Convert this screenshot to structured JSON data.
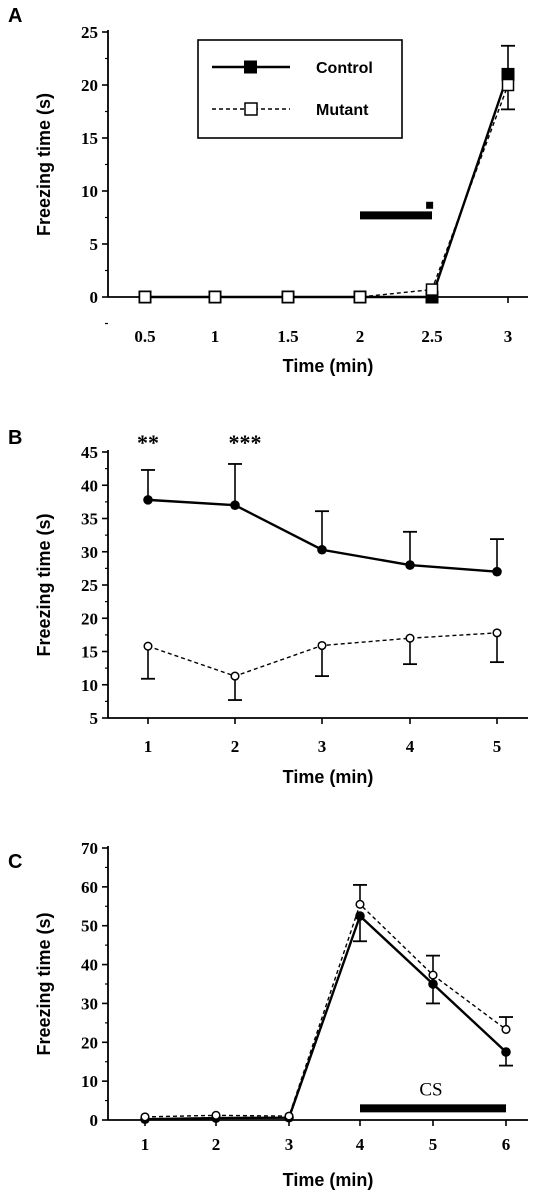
{
  "chart_data": [
    {
      "panel": "A",
      "type": "line",
      "x": [
        0.5,
        1,
        1.5,
        2,
        2.5,
        3
      ],
      "xticks": [
        "0.5",
        "1",
        "1.5",
        "2",
        "2.5",
        "3"
      ],
      "xlabel": "Time (min)",
      "ylabel": "Freezing  time  (s)",
      "ylim": [
        0,
        25
      ],
      "yticks": [
        0,
        5,
        10,
        15,
        20,
        25
      ],
      "legend": "top-center, boxed",
      "series": [
        {
          "name": "Control",
          "style": "solid",
          "marker": "filled-square",
          "values": [
            0,
            0,
            0,
            0,
            0,
            21
          ],
          "err_up": [
            0,
            0,
            0,
            0,
            0,
            2.7
          ],
          "err_down": [
            0,
            0,
            0,
            0,
            0,
            0
          ]
        },
        {
          "name": "Mutant",
          "style": "dashed",
          "marker": "open-square",
          "values": [
            0,
            0,
            0,
            0,
            0.7,
            20
          ],
          "err_up": [
            0,
            0,
            0,
            0,
            0,
            0
          ],
          "err_down": [
            0,
            0,
            0,
            0,
            0,
            2.3
          ]
        }
      ],
      "annotations": [
        {
          "kind": "bar",
          "x_from": 2,
          "x_to": 2.5,
          "y": 7.7
        },
        {
          "kind": "small-square",
          "x": 2.48,
          "y": 8.7
        }
      ]
    },
    {
      "panel": "B",
      "type": "line",
      "x": [
        1,
        2,
        3,
        4,
        5
      ],
      "xticks": [
        "1",
        "2",
        "3",
        "4",
        "5"
      ],
      "xlabel": "Time (min)",
      "ylabel": "Freezing  time  (s)",
      "ylim": [
        5,
        45
      ],
      "yticks": [
        5,
        10,
        15,
        20,
        25,
        30,
        35,
        40,
        45
      ],
      "series": [
        {
          "style": "solid",
          "marker": "filled-circle",
          "values": [
            37.8,
            37,
            30.3,
            28,
            27
          ],
          "err_up": [
            4.5,
            6.2,
            5.8,
            5,
            4.9
          ],
          "err_down": [
            0,
            0,
            0,
            0,
            0
          ]
        },
        {
          "style": "dashed",
          "marker": "open-circle",
          "values": [
            15.8,
            11.3,
            15.9,
            17,
            17.8
          ],
          "err_up": [
            0,
            0,
            0,
            0,
            0
          ],
          "err_down": [
            4.9,
            3.6,
            4.6,
            3.9,
            4.4
          ]
        }
      ],
      "annotations": [
        {
          "kind": "text",
          "x": 1,
          "text": "**"
        },
        {
          "kind": "text",
          "x": 2,
          "text": "***"
        }
      ]
    },
    {
      "panel": "C",
      "type": "line",
      "x": [
        1,
        2,
        3,
        4,
        5,
        6
      ],
      "xticks": [
        "1",
        "2",
        "3",
        "4",
        "5",
        "6"
      ],
      "xlabel": "Time (min)",
      "ylabel": "Freezing  time  (s)",
      "ylim": [
        0,
        70
      ],
      "yticks": [
        0,
        10,
        20,
        30,
        40,
        50,
        60,
        70
      ],
      "series": [
        {
          "style": "solid",
          "marker": "filled-circle",
          "values": [
            0.2,
            0.5,
            0.6,
            52.5,
            35,
            17.5
          ],
          "err_up": [
            0,
            0,
            0,
            0,
            0,
            0
          ],
          "err_down": [
            0,
            0,
            0,
            6.5,
            5,
            3.5
          ]
        },
        {
          "style": "dashed",
          "marker": "open-circle",
          "values": [
            0.8,
            1.2,
            1,
            55.5,
            37.3,
            23.3
          ],
          "err_up": [
            0,
            0,
            0,
            5,
            5,
            3.2
          ],
          "err_down": [
            0,
            0,
            0,
            0,
            0,
            0
          ]
        }
      ],
      "annotations": [
        {
          "kind": "bar",
          "x_from": 4,
          "x_to": 6,
          "y": 3,
          "label": "CS"
        }
      ]
    }
  ]
}
